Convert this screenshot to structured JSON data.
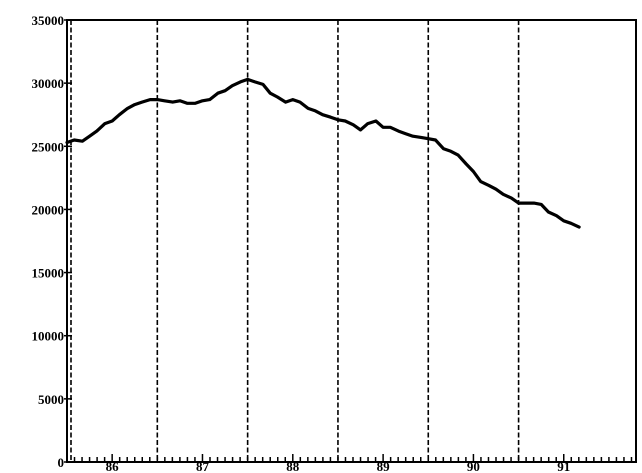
{
  "chart_data": {
    "type": "line",
    "title": "",
    "xlabel": "",
    "ylabel": "",
    "x_tick_labels": [
      "86",
      "87",
      "88",
      "89",
      "90",
      "91"
    ],
    "y_tick_labels": [
      "0",
      "5000",
      "10000",
      "15000",
      "20000",
      "25000",
      "30000",
      "35000"
    ],
    "ylim": [
      0,
      35000
    ],
    "xlim": [
      85.5,
      91.8
    ],
    "year_dividers": [
      85.5,
      86.5,
      87.5,
      88.5,
      89.5,
      90.5
    ],
    "grid": false,
    "series": [
      {
        "x": [
          85.5,
          85.58,
          85.67,
          85.75,
          85.83,
          85.92,
          86.0,
          86.08,
          86.17,
          86.25,
          86.33,
          86.42,
          86.5,
          86.58,
          86.67,
          86.75,
          86.83,
          86.92,
          87.0,
          87.08,
          87.17,
          87.25,
          87.33,
          87.42,
          87.5,
          87.58,
          87.67,
          87.75,
          87.83,
          87.92,
          88.0,
          88.08,
          88.17,
          88.25,
          88.33,
          88.42,
          88.5,
          88.58,
          88.67,
          88.75,
          88.83,
          88.92,
          89.0,
          89.08,
          89.17,
          89.25,
          89.33,
          89.42,
          89.5,
          89.58,
          89.67,
          89.75,
          89.83,
          89.92,
          90.0,
          90.08,
          90.17,
          90.25,
          90.33,
          90.42,
          90.5,
          90.58,
          90.67,
          90.75,
          90.83,
          90.92,
          91.0,
          91.08,
          91.17
        ],
        "y": [
          25300,
          25500,
          25400,
          25800,
          26200,
          26800,
          27000,
          27500,
          28000,
          28300,
          28500,
          28700,
          28700,
          28600,
          28500,
          28600,
          28400,
          28400,
          28600,
          28700,
          29200,
          29400,
          29800,
          30100,
          30300,
          30100,
          29900,
          29200,
          28900,
          28500,
          28700,
          28500,
          28000,
          27800,
          27500,
          27300,
          27100,
          27000,
          26700,
          26300,
          26800,
          27000,
          26500,
          26500,
          26200,
          26000,
          25800,
          25700,
          25600,
          25500,
          24800,
          24600,
          24300,
          23600,
          23000,
          22200,
          21900,
          21600,
          21200,
          20900,
          20500,
          20500,
          20500,
          20400,
          19800,
          19500,
          19100,
          18900,
          18600
        ]
      }
    ]
  }
}
